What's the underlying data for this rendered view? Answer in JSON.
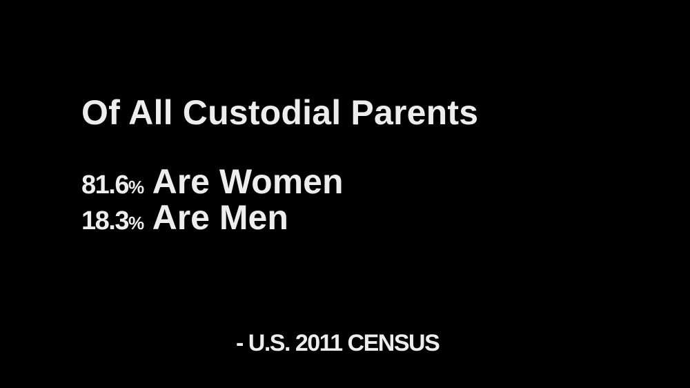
{
  "heading": "Of All Custodial Parents",
  "stats": [
    {
      "value": "81.6",
      "unit": "%",
      "label": "Are Women"
    },
    {
      "value": "18.3",
      "unit": "%",
      "label": "Are Men"
    }
  ],
  "source": "- U.S. 2011 CENSUS",
  "colors": {
    "background": "#000000",
    "text": "#ededed"
  }
}
